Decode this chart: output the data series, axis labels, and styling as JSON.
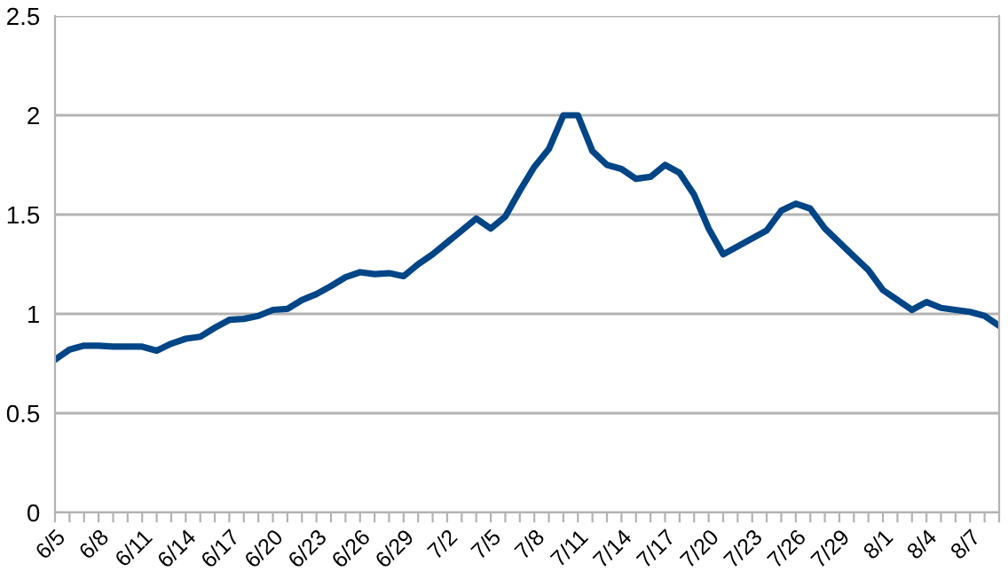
{
  "chart_data": {
    "type": "line",
    "categories": [
      "6/5",
      null,
      null,
      "6/8",
      null,
      null,
      "6/11",
      null,
      null,
      "6/14",
      null,
      null,
      "6/17",
      null,
      null,
      "6/20",
      null,
      null,
      "6/23",
      null,
      null,
      "6/26",
      null,
      null,
      "6/29",
      null,
      null,
      "7/2",
      null,
      null,
      "7/5",
      null,
      null,
      "7/8",
      null,
      null,
      "7/11",
      null,
      null,
      "7/14",
      null,
      null,
      "7/17",
      null,
      null,
      "7/20",
      null,
      null,
      "7/23",
      null,
      null,
      "7/26",
      null,
      null,
      "7/29",
      null,
      null,
      "8/1",
      null,
      null,
      "8/4",
      null,
      null,
      "8/7",
      null,
      null
    ],
    "series": [
      {
        "color": "#004586",
        "values": [
          0.77,
          0.82,
          0.84,
          0.84,
          0.835,
          0.835,
          0.835,
          0.815,
          0.85,
          0.875,
          0.885,
          0.93,
          0.97,
          0.975,
          0.99,
          1.02,
          1.025,
          1.07,
          1.1,
          1.14,
          1.185,
          1.21,
          1.2,
          1.205,
          1.19,
          1.25,
          1.3,
          1.36,
          1.42,
          1.48,
          1.43,
          1.49,
          1.62,
          1.74,
          1.83,
          2.0,
          2.0,
          1.82,
          1.75,
          1.73,
          1.68,
          1.69,
          1.75,
          1.71,
          1.6,
          1.43,
          1.3,
          1.34,
          1.38,
          1.42,
          1.52,
          1.555,
          1.53,
          1.43,
          1.36,
          1.29,
          1.22,
          1.12,
          1.07,
          1.02,
          1.06,
          1.03,
          1.02,
          1.01,
          0.99,
          0.94
        ]
      }
    ],
    "ylim": [
      0,
      2.5
    ],
    "yticks": [
      0,
      0.5,
      1,
      1.5,
      2,
      2.5
    ],
    "grid": "y",
    "legend": false,
    "marker": "none",
    "line_style": "solid"
  }
}
